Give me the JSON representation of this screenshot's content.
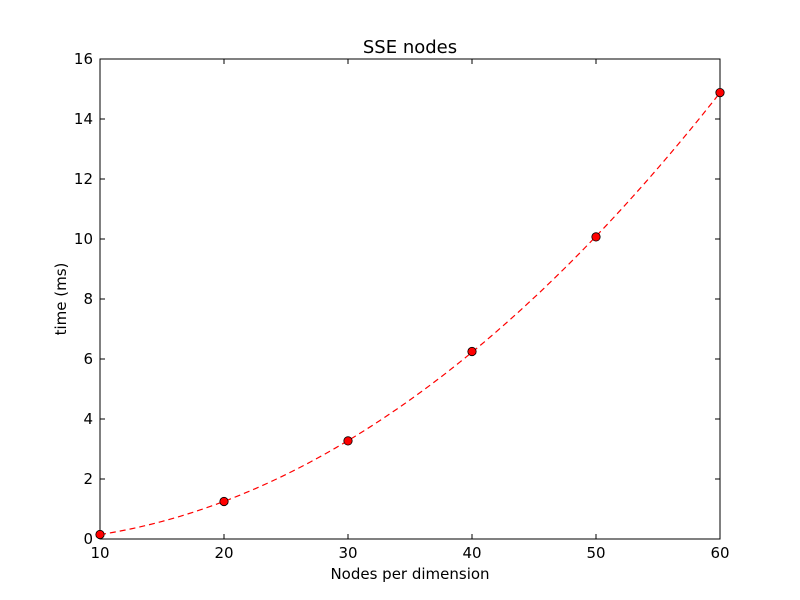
{
  "chart_data": {
    "type": "line",
    "title": "SSE nodes",
    "xlabel": "Nodes per dimension",
    "ylabel": "time (ms)",
    "xlim": [
      10,
      60
    ],
    "ylim": [
      0,
      16
    ],
    "xticks": [
      10,
      20,
      30,
      40,
      50,
      60
    ],
    "yticks": [
      0,
      2,
      4,
      6,
      8,
      10,
      12,
      14,
      16
    ],
    "grid": false,
    "legend": "none",
    "series": [
      {
        "x": [
          10,
          20,
          30,
          40,
          50,
          60
        ],
        "y": [
          0.15,
          1.25,
          3.27,
          6.25,
          10.07,
          14.88
        ],
        "color": "#ff0000",
        "marker_color": "#ff0000",
        "marker_edge": "#000000",
        "linestyle": "dashed",
        "marker": "circle",
        "fit": "quadratic"
      }
    ]
  }
}
